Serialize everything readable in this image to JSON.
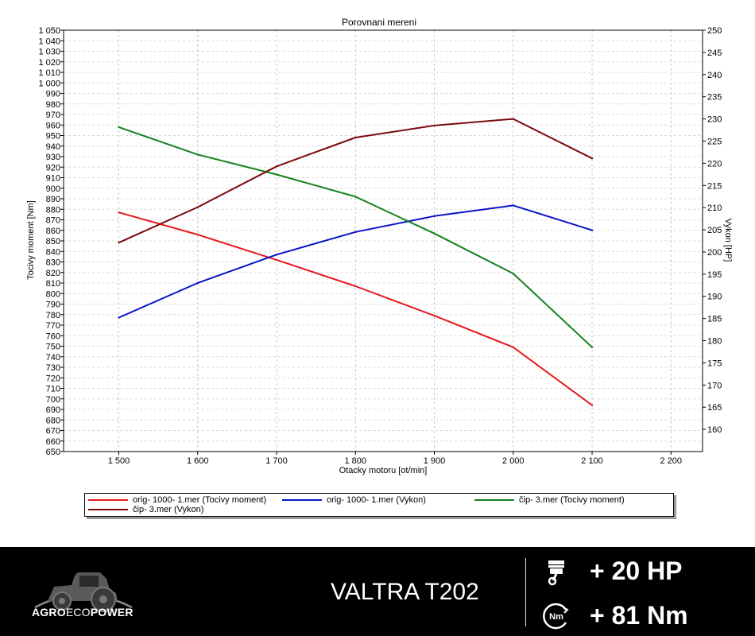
{
  "chart_data": {
    "type": "line",
    "title": "Porovnani mereni",
    "xlabel": "Otacky motoru [ot/min]",
    "ylabel_left": "Tocivy moment [Nm]",
    "ylabel_right": "Vykon [HP]",
    "xlim": [
      1430,
      2240
    ],
    "ylim_left": [
      650,
      1050
    ],
    "ylim_right": [
      155,
      250
    ],
    "x_ticks": [
      1500,
      1600,
      1700,
      1800,
      1900,
      2000,
      2100,
      2200
    ],
    "x_tick_labels": [
      "1 500",
      "1 600",
      "1 700",
      "1 800",
      "1 900",
      "2 000",
      "2 100",
      "2 200"
    ],
    "y_left_ticks": [
      650,
      660,
      670,
      680,
      690,
      700,
      710,
      720,
      730,
      740,
      750,
      760,
      770,
      780,
      790,
      800,
      810,
      820,
      830,
      840,
      850,
      860,
      870,
      880,
      890,
      900,
      910,
      920,
      930,
      940,
      950,
      960,
      970,
      980,
      990,
      1000,
      1010,
      1020,
      1030,
      1040,
      1050
    ],
    "y_left_tick_labels": [
      "650",
      "660",
      "670",
      "680",
      "690",
      "700",
      "710",
      "720",
      "730",
      "740",
      "750",
      "760",
      "770",
      "780",
      "790",
      "800",
      "810",
      "820",
      "830",
      "840",
      "850",
      "860",
      "870",
      "880",
      "890",
      "900",
      "910",
      "920",
      "930",
      "940",
      "950",
      "960",
      "970",
      "980",
      "990",
      "1 000",
      "1 010",
      "1 020",
      "1 030",
      "1 040",
      "1 050"
    ],
    "y_right_ticks": [
      160,
      165,
      170,
      175,
      180,
      185,
      190,
      195,
      200,
      205,
      210,
      215,
      220,
      225,
      230,
      235,
      240,
      245,
      250
    ],
    "y_right_tick_labels": [
      "160",
      "165",
      "170",
      "175",
      "180",
      "185",
      "190",
      "195",
      "200",
      "205",
      "210",
      "215",
      "220",
      "225",
      "230",
      "235",
      "240",
      "245",
      "250"
    ],
    "grid": true,
    "legend_position": "bottom",
    "x": [
      1500,
      1600,
      1700,
      1800,
      1900,
      2000,
      2100
    ],
    "series": [
      {
        "name": "orig- 1000- 1.mer  (Tocivy moment)",
        "axis": "left",
        "color": "#e8191c",
        "values": [
          877,
          856,
          832,
          807,
          779,
          749,
          694
        ]
      },
      {
        "name": "orig- 1000- 1.mer  (Vykon)",
        "axis": "right",
        "color": "#0a14c8",
        "values": [
          185.2,
          193.0,
          199.4,
          204.5,
          208.1,
          210.5,
          204.9
        ]
      },
      {
        "name": "čip- 3.mer  (Tocivy moment)",
        "axis": "left",
        "color": "#14821e",
        "values": [
          958,
          932,
          913,
          892,
          857,
          819,
          749
        ]
      },
      {
        "name": "čip- 3.mer  (Vykon)",
        "axis": "right",
        "color": "#7a0a0a",
        "values": [
          202.1,
          210.1,
          219.3,
          225.8,
          228.5,
          230.0,
          221.1
        ]
      }
    ]
  },
  "footer": {
    "brand_agro": "AGRO",
    "brand_eco": "ECO",
    "brand_power": "POWER",
    "model": "VALTRA T202",
    "hp_gain": "+ 20 HP",
    "torque_gain": "+ 81 Nm",
    "torque_icon_text": "Nm",
    "icons": {
      "logo": "tractor-logo-icon",
      "hp": "piston-icon",
      "torque": "torque-gauge-icon"
    }
  }
}
